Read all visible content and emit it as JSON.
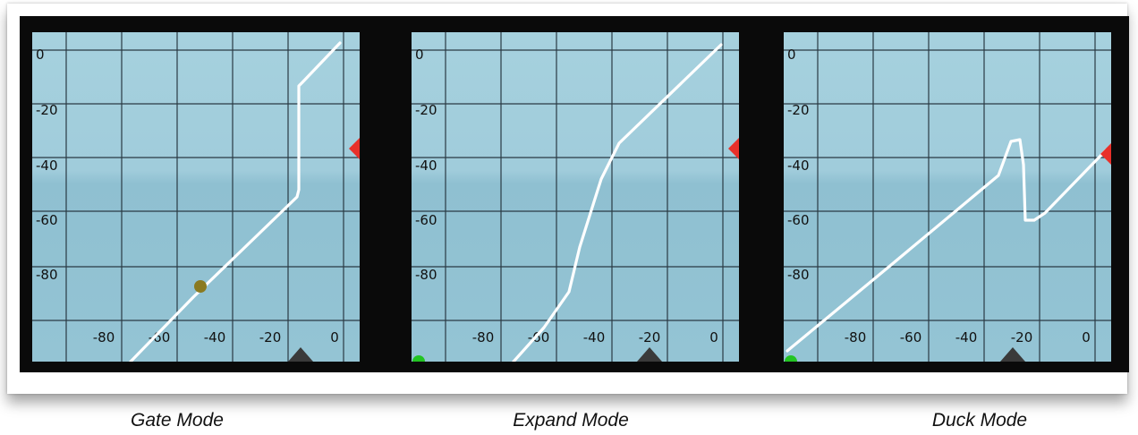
{
  "panels": [
    {
      "id": "gate",
      "caption": "Gate Mode",
      "y_ticks": [
        "0",
        "-20",
        "-40",
        "-60",
        "-80"
      ],
      "x_ticks": [
        "-80",
        "-60",
        "-40",
        "-20",
        "0"
      ],
      "has_dot": true,
      "has_green_marker": false
    },
    {
      "id": "expand",
      "caption": "Expand Mode",
      "y_ticks": [
        "0",
        "-20",
        "-40",
        "-60",
        "-80"
      ],
      "x_ticks": [
        "-80",
        "-60",
        "-40",
        "-20",
        "0"
      ],
      "has_dot": false,
      "has_green_marker": true
    },
    {
      "id": "duck",
      "caption": "Duck Mode",
      "y_ticks": [
        "0",
        "-20",
        "-40",
        "-60",
        "-80"
      ],
      "x_ticks": [
        "-80",
        "-60",
        "-40",
        "-20",
        "0"
      ],
      "has_dot": false,
      "has_green_marker": true
    }
  ],
  "colors": {
    "graph_bg_top": "#a6d1de",
    "graph_bg_bottom": "#94c4d4",
    "grid": "#2a3a44",
    "curve": "#ffffff",
    "threshold_marker": "#e8302a",
    "bottom_marker": "#3a3a3a",
    "dot": "#8a7a20",
    "green_marker": "#22c422",
    "frame": "#0a0a0a"
  }
}
